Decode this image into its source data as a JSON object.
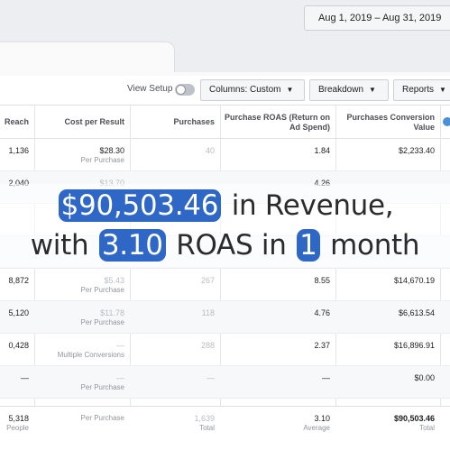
{
  "date_range": "Aug 1, 2019 – Aug 31, 2019",
  "toolbar": {
    "view_setup": "View Setup",
    "columns": "Columns: Custom",
    "breakdown": "Breakdown",
    "reports": "Reports",
    "view_setup_toggle_on": false
  },
  "columns": {
    "reach": "Reach",
    "cost_per_result": "Cost per Result",
    "purchases": "Purchases",
    "roas": "Purchase ROAS (Return on Ad Spend)",
    "conversion_value": "Purchases Conversion Value"
  },
  "rows": [
    {
      "reach": "1,136",
      "cost": "$28.30",
      "cost_sub": "Per Purchase",
      "purchases": "40",
      "roas": "1.84",
      "value": "$2,233.40"
    },
    {
      "reach": "2,040",
      "cost": "$13.70",
      "cost_sub": "",
      "purchases": "",
      "roas": "4.26",
      "value": ""
    },
    {
      "reach": "",
      "cost": "",
      "cost_sub": "",
      "purchases": "",
      "roas": "",
      "value": ""
    },
    {
      "reach": "",
      "cost": "",
      "cost_sub": "",
      "purchases": "",
      "roas": "",
      "value": ""
    },
    {
      "reach": "8,872",
      "cost": "$5.43",
      "cost_sub": "Per Purchase",
      "purchases": "267",
      "roas": "8.55",
      "value": "$14,670.19"
    },
    {
      "reach": "5,120",
      "cost": "$11.78",
      "cost_sub": "Per Purchase",
      "purchases": "118",
      "roas": "4.76",
      "value": "$6,613.54"
    },
    {
      "reach": "0,428",
      "cost": "—",
      "cost_sub": "Multiple Conversions",
      "purchases": "288",
      "roas": "2.37",
      "value": "$16,896.91"
    },
    {
      "reach": "—",
      "cost": "—",
      "cost_sub": "Per Purchase",
      "purchases": "—",
      "roas": "—",
      "value": "$0.00"
    }
  ],
  "totals": {
    "reach": "5,318",
    "reach_sub": "People",
    "cost": "",
    "cost_sub": "Per Purchase",
    "purchases": "1,639",
    "purchases_sub": "Total",
    "roas": "3.10",
    "roas_sub": "Average",
    "value": "$90,503.46",
    "value_sub": "Total"
  },
  "headline": {
    "revenue": "$90,503.46",
    "revenue_text": "in Revenue,",
    "with": "with",
    "roas": "3.10",
    "roas_text": "ROAS in",
    "months": "1",
    "month_text": "month"
  },
  "colors": {
    "accent": "#2f67c6",
    "text": "#2b2b2b"
  }
}
